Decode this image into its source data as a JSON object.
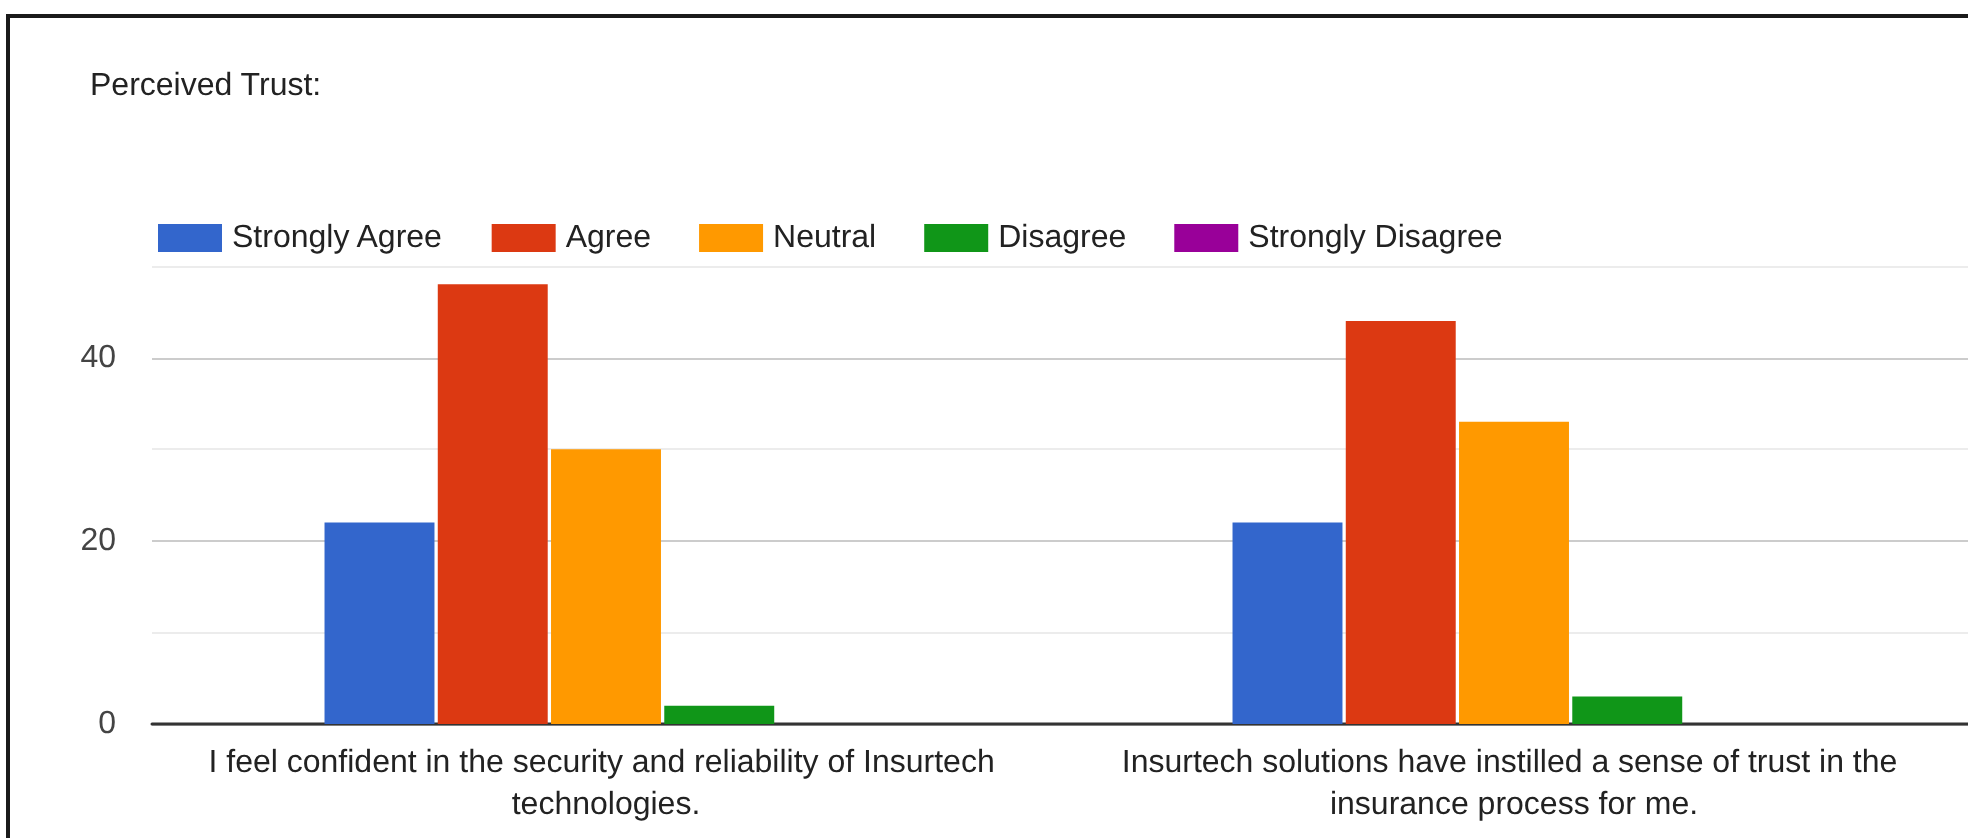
{
  "chart_data": {
    "type": "bar",
    "title": "Perceived Trust:",
    "categories": [
      "I feel confident in the security and reliability of Insurtech technologies.",
      "Insurtech solutions have instilled a sense of trust in the insurance process for me."
    ],
    "series": [
      {
        "name": "Strongly Agree",
        "color": "#3366cc",
        "values": [
          22,
          22
        ]
      },
      {
        "name": "Agree",
        "color": "#dc3912",
        "values": [
          48,
          44
        ]
      },
      {
        "name": "Neutral",
        "color": "#ff9900",
        "values": [
          30,
          33
        ]
      },
      {
        "name": "Disagree",
        "color": "#109618",
        "values": [
          2,
          3
        ]
      },
      {
        "name": "Strongly Disagree",
        "color": "#990099",
        "values": [
          0,
          0
        ]
      }
    ],
    "ylim": [
      0,
      50
    ],
    "yticks": [
      0,
      {
        "value": 10,
        "label": null
      },
      20,
      {
        "value": 30,
        "label": null
      },
      40,
      {
        "value": 50,
        "label": null
      }
    ],
    "grid": "y",
    "legend": "top"
  }
}
